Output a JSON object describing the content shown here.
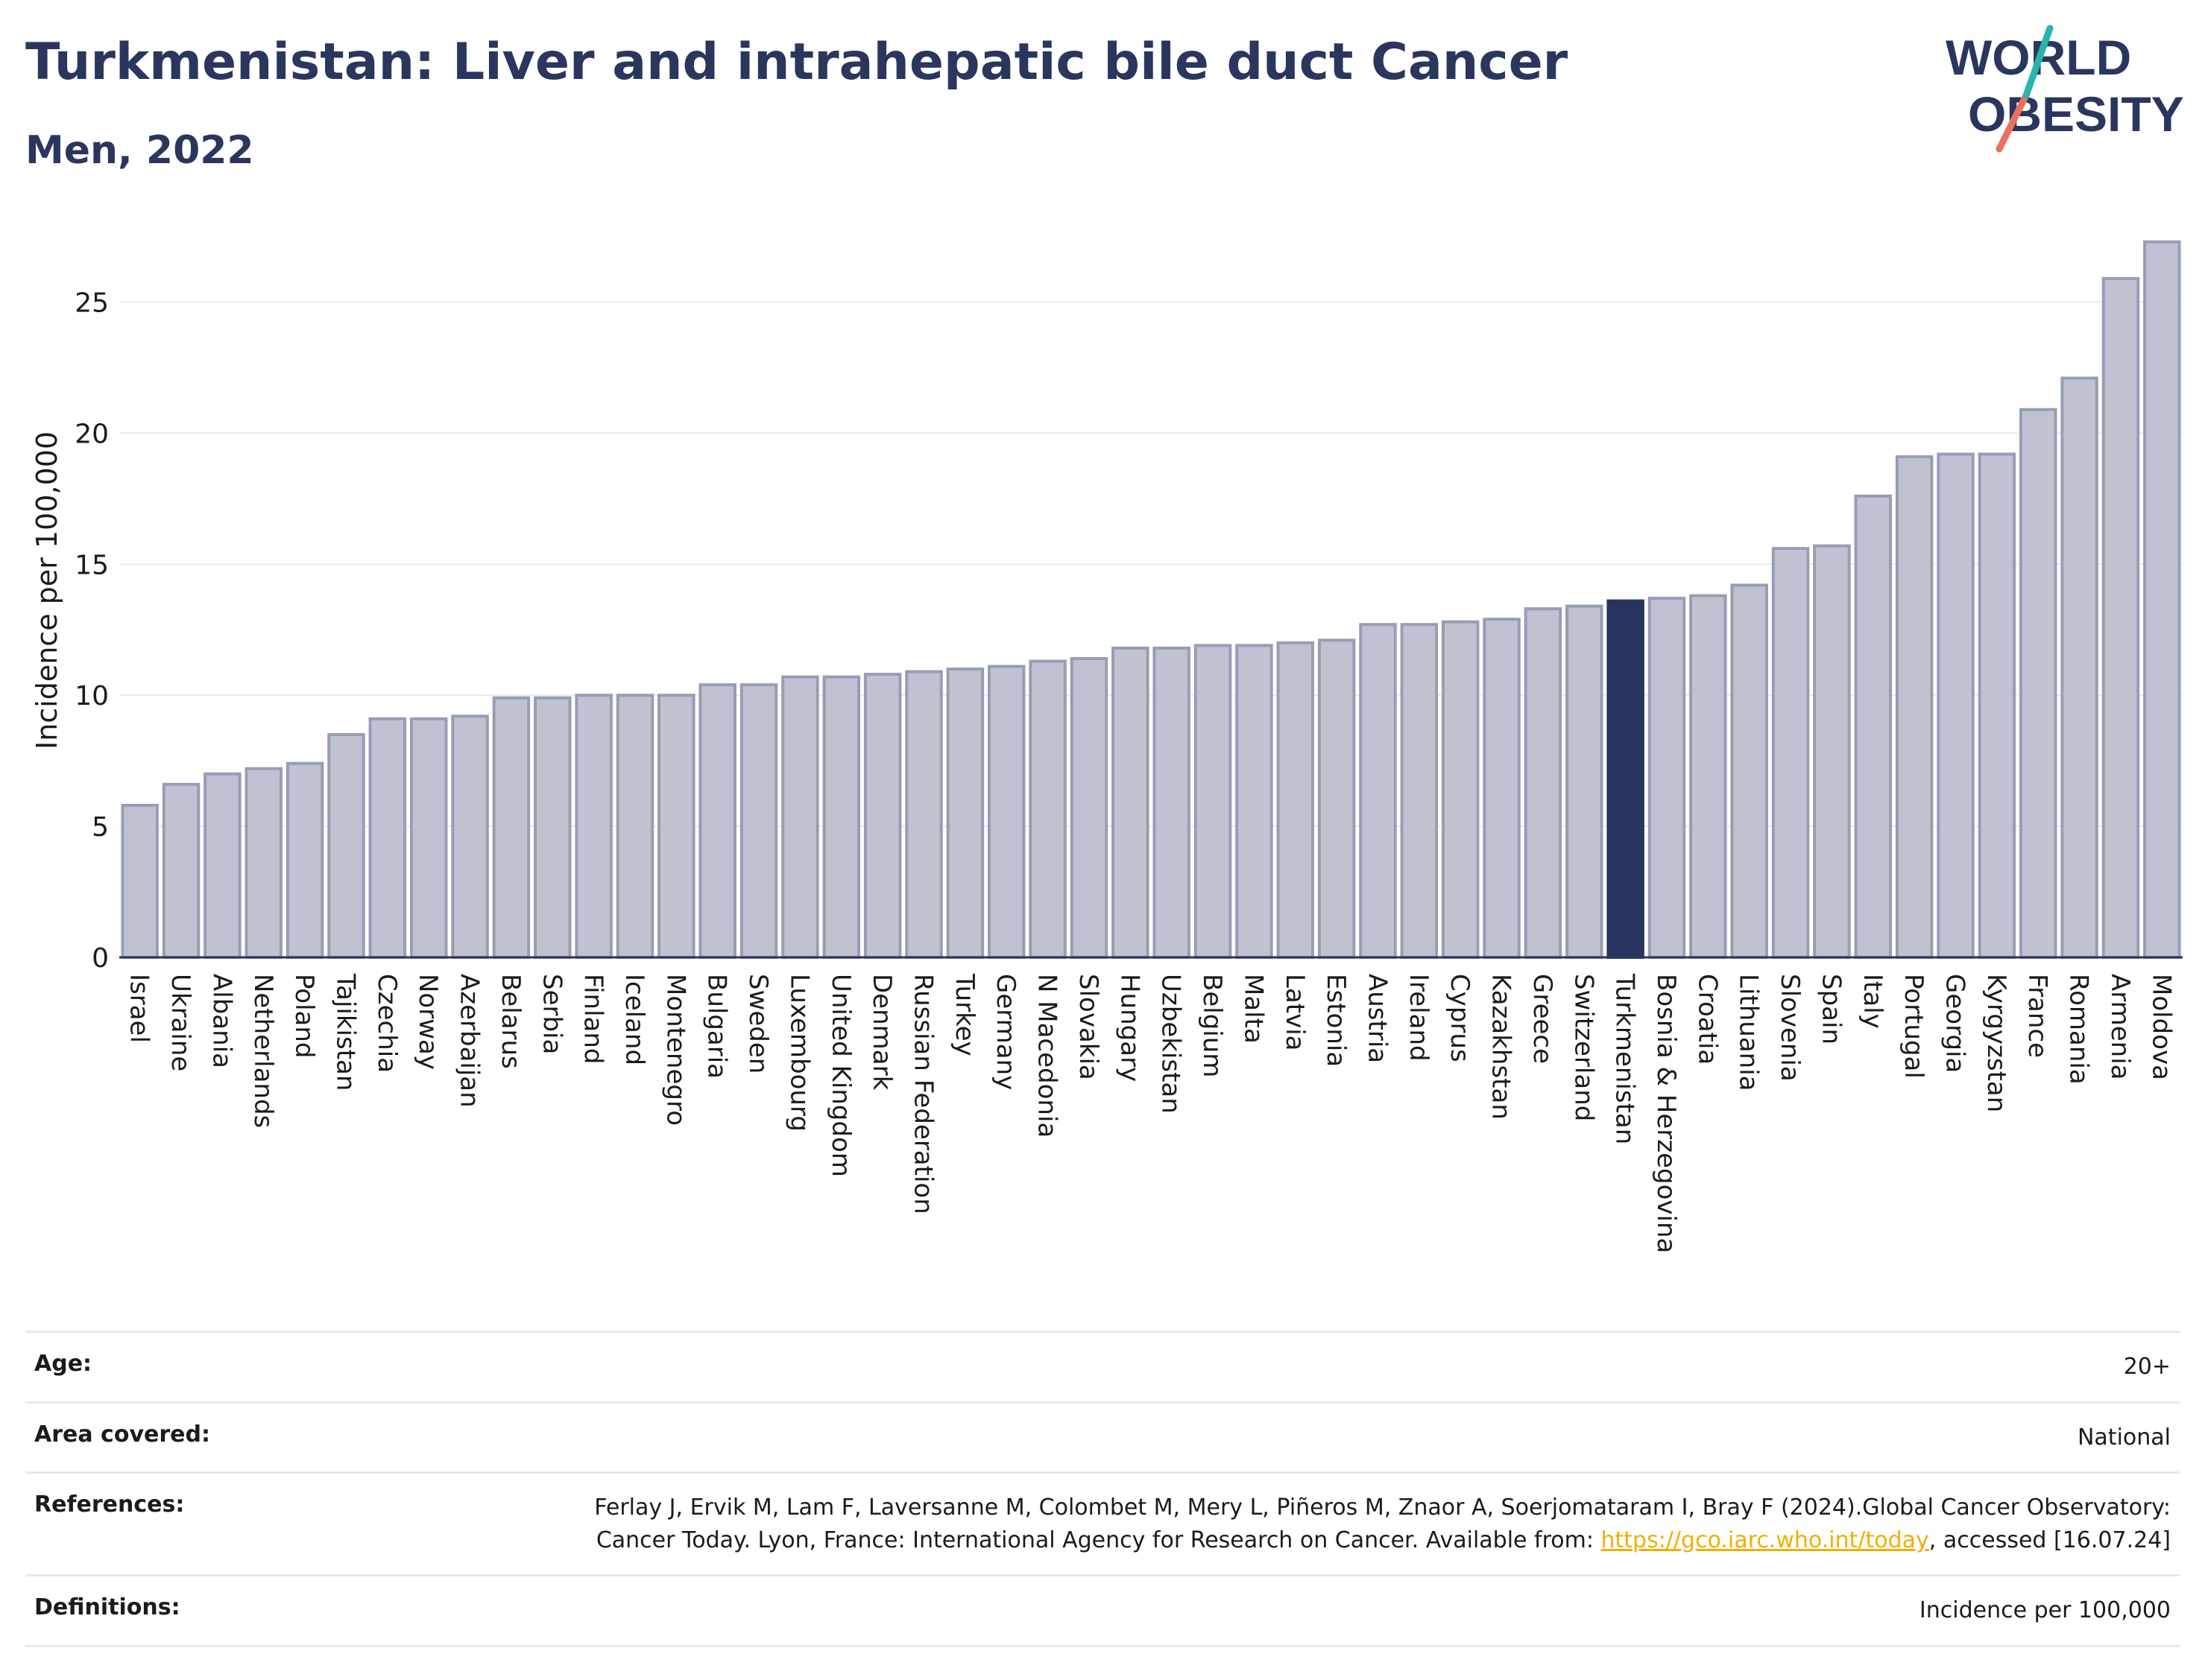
{
  "header": {
    "title": "Turkmenistan: Liver and intrahepatic bile duct Cancer",
    "subtitle": "Men, 2022"
  },
  "logo": {
    "line1": "WORLD",
    "line2": "OBESITY"
  },
  "colors": {
    "bar": "#bfc3d1",
    "bar_stroke": "#979db6",
    "highlight": "#29345e",
    "title": "#2a365e",
    "grid": "#e8eaf0"
  },
  "chart_data": {
    "type": "bar",
    "ylabel": "Incidence per 100,000",
    "ylim": [
      0,
      28
    ],
    "yticks": [
      0,
      5,
      10,
      15,
      20,
      25
    ],
    "highlight": "Turkmenistan",
    "categories": [
      "Israel",
      "Ukraine",
      "Albania",
      "Netherlands",
      "Poland",
      "Tajikistan",
      "Czechia",
      "Norway",
      "Azerbaijan",
      "Belarus",
      "Serbia",
      "Finland",
      "Iceland",
      "Montenegro",
      "Bulgaria",
      "Sweden",
      "Luxembourg",
      "United Kingdom",
      "Denmark",
      "Russian Federation",
      "Turkey",
      "Germany",
      "N Macedonia",
      "Slovakia",
      "Hungary",
      "Uzbekistan",
      "Belgium",
      "Malta",
      "Latvia",
      "Estonia",
      "Austria",
      "Ireland",
      "Cyprus",
      "Kazakhstan",
      "Greece",
      "Switzerland",
      "Turkmenistan",
      "Bosnia & Herzegovina",
      "Croatia",
      "Lithuania",
      "Slovenia",
      "Spain",
      "Italy",
      "Portugal",
      "Georgia",
      "Kyrgyzstan",
      "France",
      "Romania",
      "Armenia",
      "Moldova"
    ],
    "values": [
      5.8,
      6.6,
      7.0,
      7.2,
      7.4,
      8.5,
      9.1,
      9.1,
      9.2,
      9.9,
      9.9,
      10.0,
      10.0,
      10.0,
      10.4,
      10.4,
      10.7,
      10.7,
      10.8,
      10.9,
      11.0,
      11.1,
      11.3,
      11.4,
      11.8,
      11.8,
      11.9,
      11.9,
      12.0,
      12.1,
      12.7,
      12.7,
      12.8,
      12.9,
      13.3,
      13.4,
      13.6,
      13.7,
      13.8,
      14.2,
      15.6,
      15.7,
      17.6,
      19.1,
      19.2,
      19.2,
      20.9,
      22.1,
      25.9,
      27.3
    ]
  },
  "meta": {
    "age_label": "Age:",
    "age_value": "20+",
    "area_label": "Area covered:",
    "area_value": "National",
    "ref_label": "References:",
    "ref_text1": "Ferlay J, Ervik M, Lam F, Laversanne M, Colombet M, Mery L, Piñeros M, Znaor A, Soerjomataram I, Bray F (2024).Global Cancer Observatory: Cancer Today. Lyon, France: International Agency for Research on Cancer. Available from: ",
    "ref_link": "https://gco.iarc.who.int/today",
    "ref_text2": ", accessed [16.07.24]",
    "def_label": "Definitions:",
    "def_value": "Incidence per 100,000"
  }
}
